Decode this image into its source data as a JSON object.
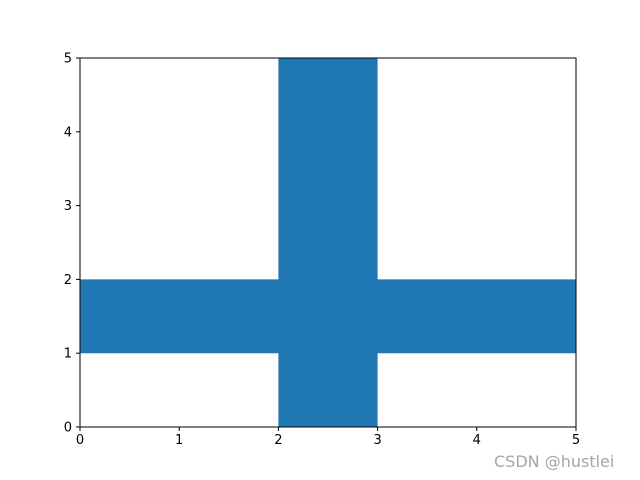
{
  "chart_data": {
    "type": "area",
    "color": "#1f77b4",
    "xlim": [
      0,
      5
    ],
    "ylim": [
      0,
      5
    ],
    "x_ticks": [
      0,
      1,
      2,
      3,
      4,
      5
    ],
    "y_ticks": [
      0,
      1,
      2,
      3,
      4,
      5
    ],
    "grid": false,
    "series": [
      {
        "x": [
          2,
          3
        ],
        "y_lower": 0,
        "y_upper": 5
      },
      {
        "x": [
          0,
          5
        ],
        "y_lower": 1,
        "y_upper": 2
      }
    ]
  },
  "watermark": "CSDN @hustlei"
}
